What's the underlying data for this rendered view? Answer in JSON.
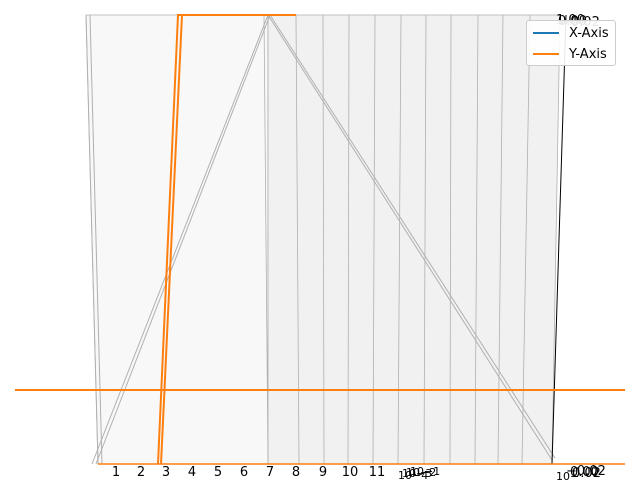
{
  "chart_data": {
    "type": "line",
    "projection": "3d",
    "title": "",
    "x_ticks": [
      "1",
      "2",
      "3",
      "4",
      "5",
      "6",
      "7",
      "8",
      "9",
      "10",
      "11"
    ],
    "depth_ticks": [
      "10−4",
      "10−3",
      "10−2",
      "10−1"
    ],
    "depth_corner_tick": "10−",
    "z_ticks": [
      "−0.02",
      "0.00",
      "0.02"
    ],
    "z_top_ticks": [
      "1.00",
      "0.00",
      "−0.02"
    ],
    "series": [
      {
        "name": "X-Axis",
        "color": "#1f77b4"
      },
      {
        "name": "Y-Axis",
        "color": "#ff7f0e"
      }
    ],
    "legend_position": "top-right",
    "grid": true
  }
}
